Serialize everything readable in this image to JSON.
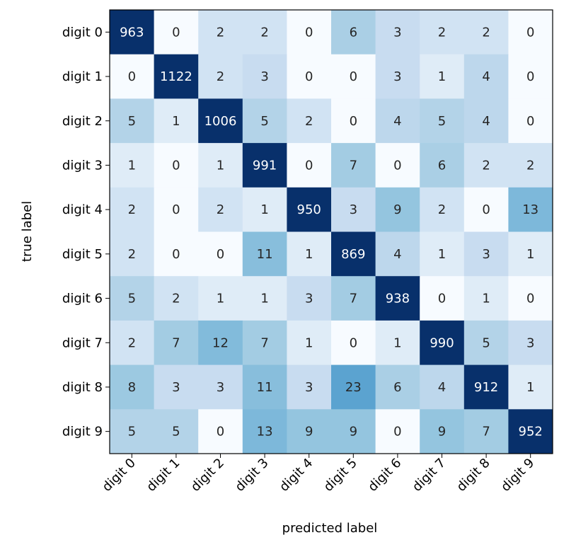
{
  "chart_data": {
    "type": "heatmap",
    "title": "",
    "xlabel": "predicted label",
    "ylabel": "true label",
    "row_labels": [
      "digit 0",
      "digit 1",
      "digit 2",
      "digit 3",
      "digit 4",
      "digit 5",
      "digit 6",
      "digit 7",
      "digit 8",
      "digit 9"
    ],
    "col_labels": [
      "digit 0",
      "digit 1",
      "digit 2",
      "digit 3",
      "digit 4",
      "digit 5",
      "digit 6",
      "digit 7",
      "digit 8",
      "digit 9"
    ],
    "values": [
      [
        963,
        0,
        2,
        2,
        0,
        6,
        3,
        2,
        2,
        0
      ],
      [
        0,
        1122,
        2,
        3,
        0,
        0,
        3,
        1,
        4,
        0
      ],
      [
        5,
        1,
        1006,
        5,
        2,
        0,
        4,
        5,
        4,
        0
      ],
      [
        1,
        0,
        1,
        991,
        0,
        7,
        0,
        6,
        2,
        2
      ],
      [
        2,
        0,
        2,
        1,
        950,
        3,
        9,
        2,
        0,
        13
      ],
      [
        2,
        0,
        0,
        11,
        1,
        869,
        4,
        1,
        3,
        1
      ],
      [
        5,
        2,
        1,
        1,
        3,
        7,
        938,
        0,
        1,
        0
      ],
      [
        2,
        7,
        12,
        7,
        1,
        0,
        1,
        990,
        5,
        3
      ],
      [
        8,
        3,
        3,
        11,
        3,
        23,
        6,
        4,
        912,
        1
      ],
      [
        5,
        5,
        0,
        13,
        9,
        9,
        0,
        9,
        7,
        952
      ]
    ],
    "colormap": "Blues",
    "colormap_low": "#f7fbff",
    "colormap_high": "#08306b",
    "text_color_dark": "#262626",
    "text_color_light": "#ffffff"
  }
}
